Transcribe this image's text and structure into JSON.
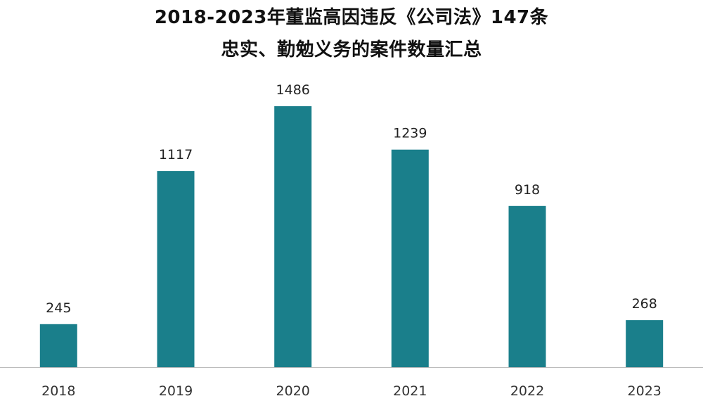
{
  "chart_data": {
    "type": "bar",
    "title": "2018-2023年董监高因违反《公司法》147条",
    "subtitle": "忠实、勤勉义务的案件数量汇总",
    "categories": [
      "2018",
      "2019",
      "2020",
      "2021",
      "2022",
      "2023"
    ],
    "values": [
      245,
      1117,
      1486,
      1239,
      918,
      268
    ],
    "data_labels": [
      "245",
      "1117",
      "1486",
      "1239",
      "918",
      "268"
    ],
    "xlabel": "",
    "ylabel": "",
    "ylim": [
      0,
      1486
    ],
    "grid": false,
    "legend": "none",
    "bar_color": "#1a7f8b",
    "axis_color": "#bbbbbb"
  }
}
